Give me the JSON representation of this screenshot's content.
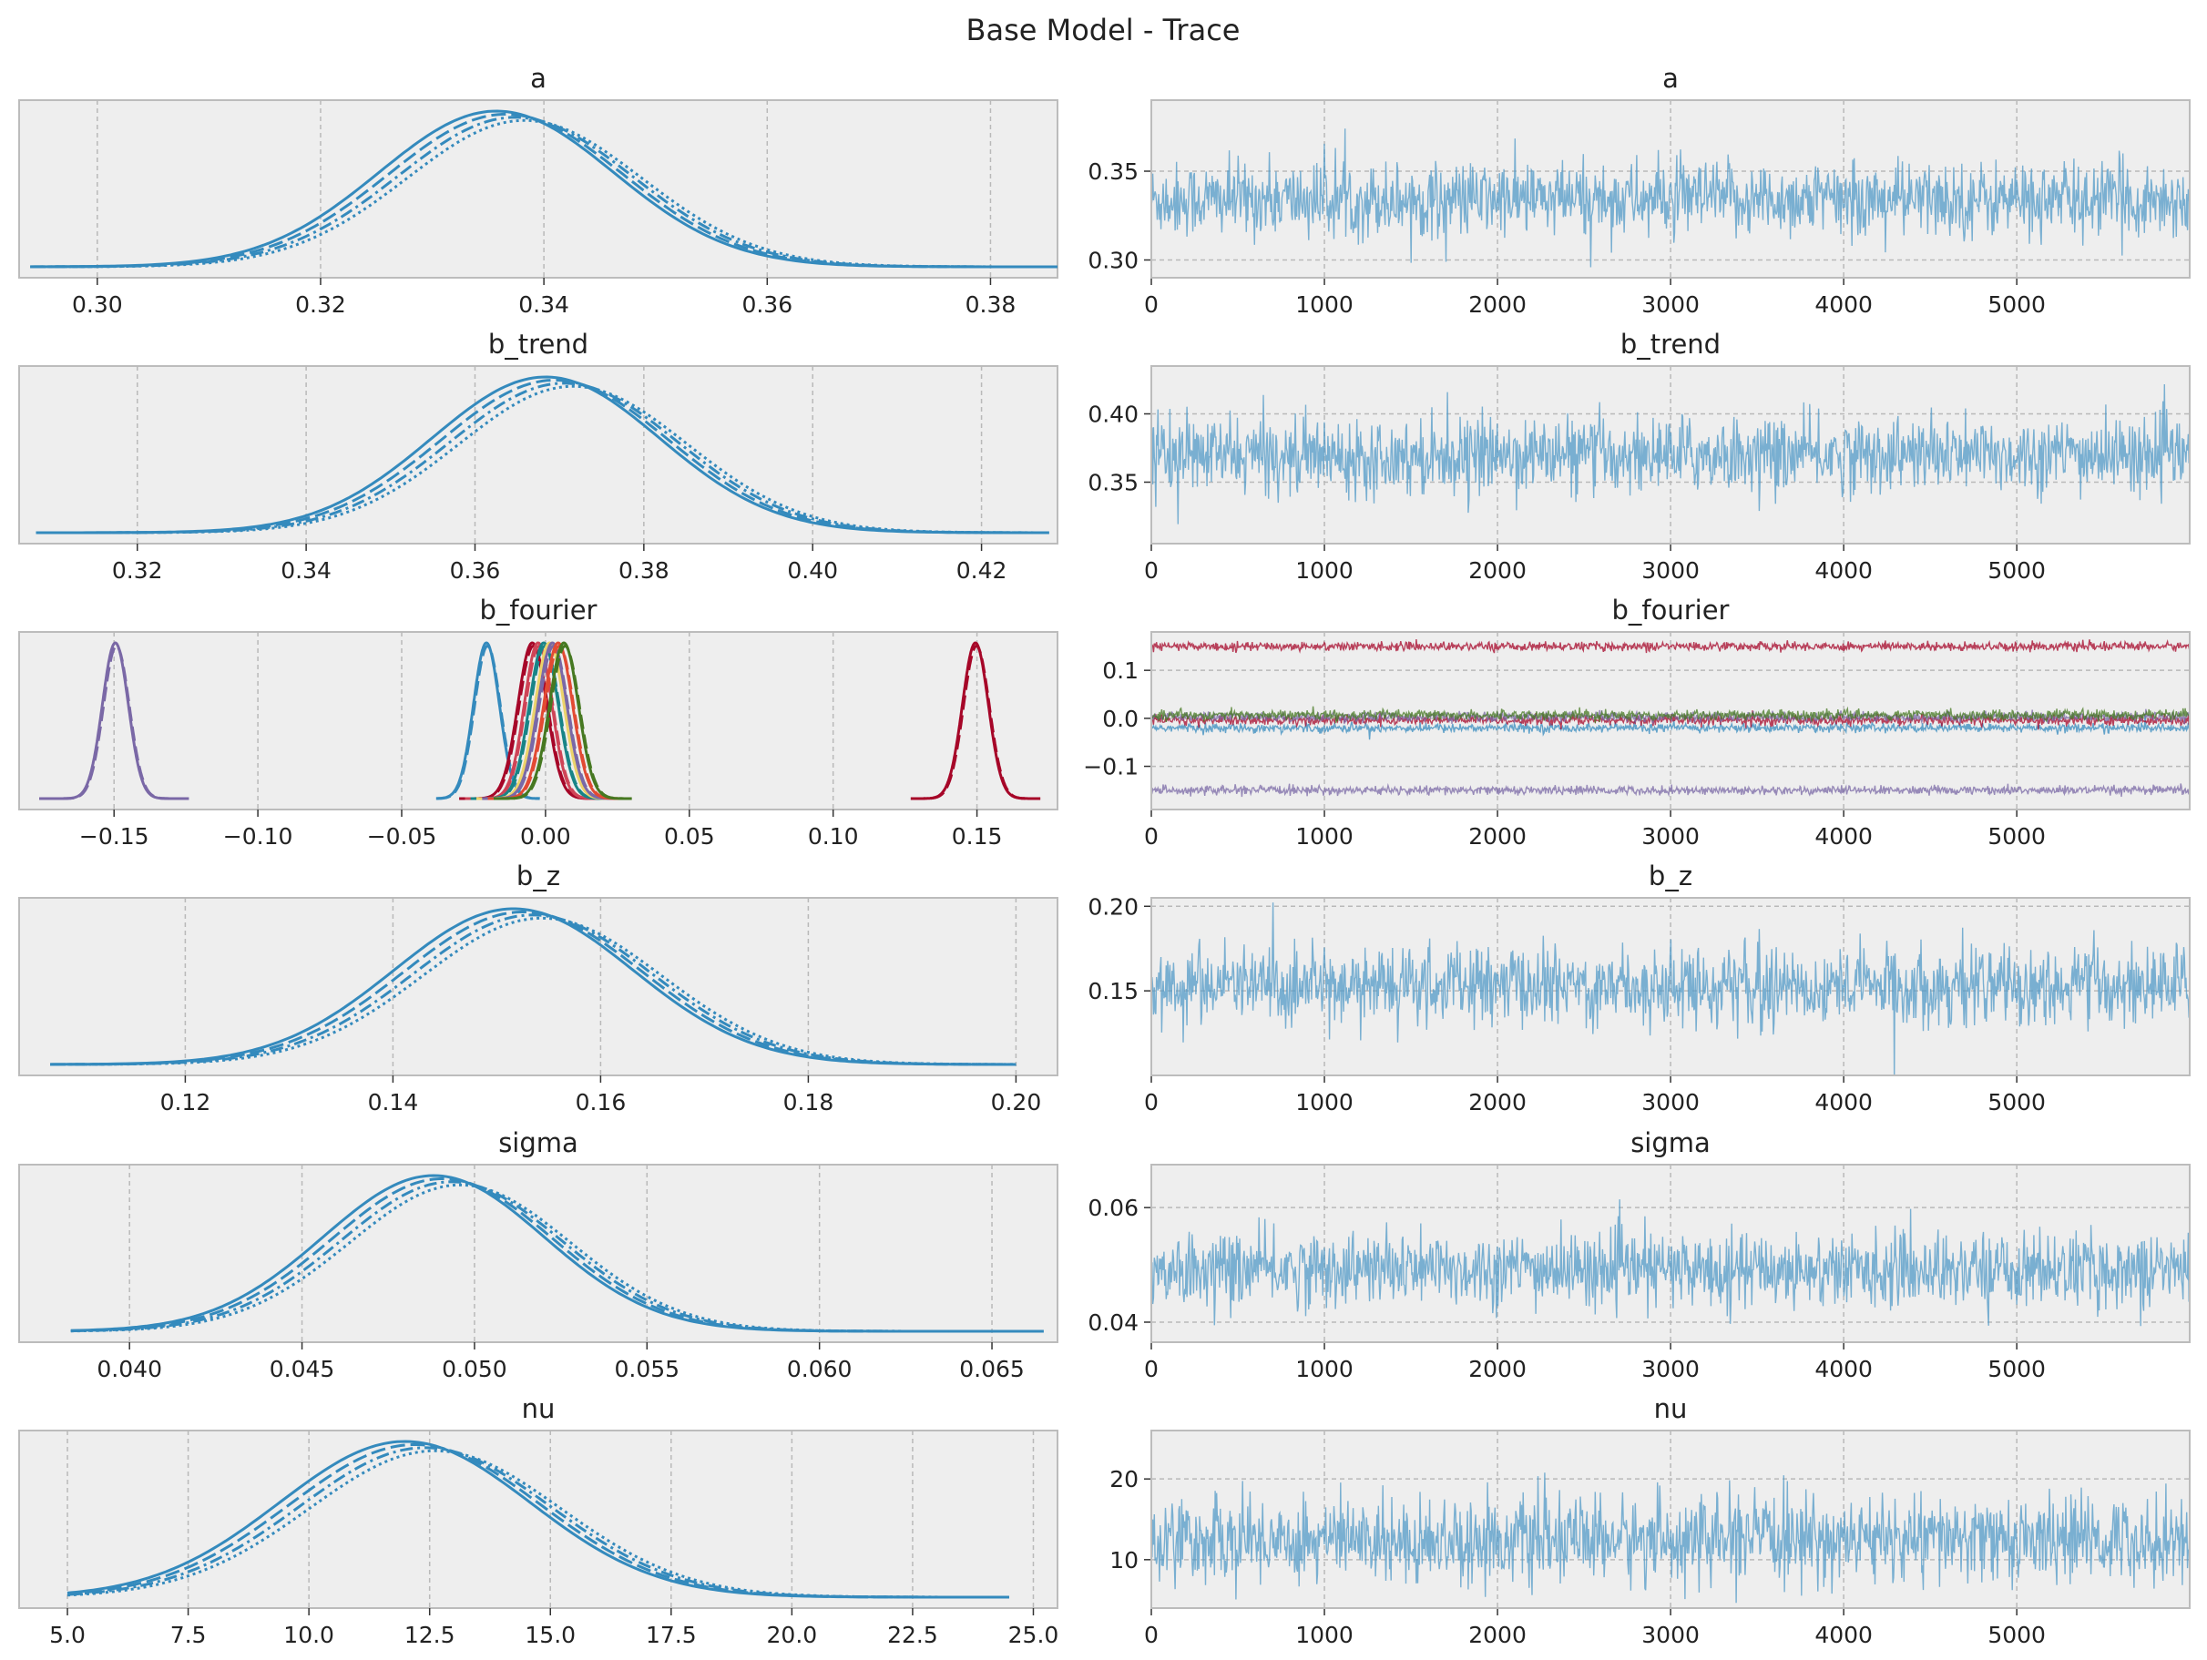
{
  "title": "Base Model - Trace",
  "colors": {
    "panel_bg": "#eeeeee",
    "grid": "#b9b9b9",
    "blue": "#348abd",
    "trace_blue": "#5299c7",
    "red": "#a60628",
    "purple": "#7a68a6",
    "green": "#467821",
    "yellow": "#ecd36a",
    "pink": "#cf4457",
    "teal": "#188487",
    "orange": "#e24a33"
  },
  "chart_data": [
    {
      "type": "line",
      "kind": "kde",
      "title": "a",
      "xlim": [
        0.293,
        0.386
      ],
      "xticks": [
        "0.30",
        "0.32",
        "0.34",
        "0.36",
        "0.38"
      ],
      "tick_values": [
        0.3,
        0.32,
        0.34,
        0.36,
        0.38
      ],
      "series": [
        {
          "mean": 0.337,
          "sd": 0.0105,
          "range": [
            0.294,
            0.386
          ],
          "color": "blue"
        }
      ]
    },
    {
      "type": "line",
      "kind": "trace",
      "title": "a",
      "xlim": [
        0,
        5999
      ],
      "ylim": [
        0.29,
        0.39
      ],
      "xticks": [
        "0",
        "1000",
        "2000",
        "3000",
        "4000",
        "5000"
      ],
      "yticks": [
        "0.30",
        "0.35"
      ],
      "ytick_values": [
        0.3,
        0.35
      ],
      "series": [
        {
          "mean": 0.334,
          "sd": 0.0105,
          "color": "trace_blue"
        }
      ]
    },
    {
      "type": "line",
      "kind": "kde",
      "title": "b_trend",
      "xlim": [
        0.306,
        0.429
      ],
      "xticks": [
        "0.32",
        "0.34",
        "0.36",
        "0.38",
        "0.40",
        "0.42"
      ],
      "tick_values": [
        0.32,
        0.34,
        0.36,
        0.38,
        0.4,
        0.42
      ],
      "series": [
        {
          "mean": 0.37,
          "sd": 0.0135,
          "range": [
            0.308,
            0.428
          ],
          "color": "blue"
        }
      ]
    },
    {
      "type": "line",
      "kind": "trace",
      "title": "b_trend",
      "xlim": [
        0,
        5999
      ],
      "ylim": [
        0.305,
        0.435
      ],
      "xticks": [
        "0",
        "1000",
        "2000",
        "3000",
        "4000",
        "5000"
      ],
      "yticks": [
        "0.35",
        "0.40"
      ],
      "ytick_values": [
        0.35,
        0.4
      ],
      "series": [
        {
          "mean": 0.37,
          "sd": 0.0135,
          "color": "trace_blue"
        }
      ]
    },
    {
      "type": "line",
      "kind": "kde",
      "title": "b_fourier",
      "xlim": [
        -0.183,
        0.178
      ],
      "xticks": [
        "−0.15",
        "−0.10",
        "−0.05",
        "0.00",
        "0.05",
        "0.10",
        "0.15"
      ],
      "tick_values": [
        -0.15,
        -0.1,
        -0.05,
        0.0,
        0.05,
        0.1,
        0.15
      ],
      "series": [
        {
          "mean": -0.149,
          "sd": 0.0045,
          "range": [
            -0.176,
            -0.124
          ],
          "color": "purple"
        },
        {
          "mean": 0.15,
          "sd": 0.0045,
          "range": [
            0.127,
            0.172
          ],
          "color": "red"
        },
        {
          "mean": -0.02,
          "sd": 0.0045,
          "range": [
            -0.038,
            -0.002
          ],
          "color": "blue"
        },
        {
          "mean": -0.004,
          "sd": 0.005,
          "range": [
            -0.03,
            0.02
          ],
          "color": "red"
        },
        {
          "mean": -0.002,
          "sd": 0.0048,
          "range": [
            -0.028,
            0.022
          ],
          "color": "pink"
        },
        {
          "mean": 0.0,
          "sd": 0.005,
          "range": [
            -0.026,
            0.024
          ],
          "color": "teal"
        },
        {
          "mean": 0.002,
          "sd": 0.005,
          "range": [
            -0.024,
            0.026
          ],
          "color": "yellow"
        },
        {
          "mean": 0.003,
          "sd": 0.005,
          "range": [
            -0.022,
            0.026
          ],
          "color": "purple"
        },
        {
          "mean": 0.005,
          "sd": 0.005,
          "range": [
            -0.02,
            0.028
          ],
          "color": "orange"
        },
        {
          "mean": 0.007,
          "sd": 0.005,
          "range": [
            -0.018,
            0.03
          ],
          "color": "green"
        }
      ]
    },
    {
      "type": "line",
      "kind": "trace",
      "title": "b_fourier",
      "xlim": [
        0,
        5999
      ],
      "ylim": [
        -0.19,
        0.18
      ],
      "xticks": [
        "0",
        "1000",
        "2000",
        "3000",
        "4000",
        "5000"
      ],
      "yticks": [
        "−0.1",
        "0.0",
        "0.1"
      ],
      "ytick_values": [
        -0.1,
        0.0,
        0.1
      ],
      "series": [
        {
          "mean": 0.15,
          "sd": 0.0045,
          "color": "red"
        },
        {
          "mean": -0.15,
          "sd": 0.0045,
          "color": "purple"
        },
        {
          "mean": -0.02,
          "sd": 0.0045,
          "color": "blue"
        },
        {
          "mean": -0.004,
          "sd": 0.005,
          "color": "red"
        },
        {
          "mean": 0.003,
          "sd": 0.005,
          "color": "purple"
        },
        {
          "mean": 0.007,
          "sd": 0.005,
          "color": "green"
        }
      ]
    },
    {
      "type": "line",
      "kind": "kde",
      "title": "b_z",
      "xlim": [
        0.104,
        0.204
      ],
      "xticks": [
        "0.12",
        "0.14",
        "0.16",
        "0.18",
        "0.20"
      ],
      "tick_values": [
        0.12,
        0.14,
        0.16,
        0.18,
        0.2
      ],
      "series": [
        {
          "mean": 0.153,
          "sd": 0.0115,
          "range": [
            0.107,
            0.2
          ],
          "color": "blue"
        }
      ]
    },
    {
      "type": "line",
      "kind": "trace",
      "title": "b_z",
      "xlim": [
        0,
        5999
      ],
      "ylim": [
        0.1,
        0.205
      ],
      "xticks": [
        "0",
        "1000",
        "2000",
        "3000",
        "4000",
        "5000"
      ],
      "yticks": [
        "0.15",
        "0.20"
      ],
      "ytick_values": [
        0.15,
        0.2
      ],
      "series": [
        {
          "mean": 0.153,
          "sd": 0.0115,
          "color": "trace_blue"
        }
      ]
    },
    {
      "type": "line",
      "kind": "kde",
      "title": "sigma",
      "xlim": [
        0.0368,
        0.0669
      ],
      "xticks": [
        "0.040",
        "0.045",
        "0.050",
        "0.055",
        "0.060",
        "0.065"
      ],
      "tick_values": [
        0.04,
        0.045,
        0.05,
        0.055,
        0.06,
        0.065
      ],
      "series": [
        {
          "mean": 0.0492,
          "sd": 0.0032,
          "range": [
            0.0383,
            0.0665
          ],
          "color": "blue"
        }
      ]
    },
    {
      "type": "line",
      "kind": "trace",
      "title": "sigma",
      "xlim": [
        0,
        5999
      ],
      "ylim": [
        0.0365,
        0.0675
      ],
      "xticks": [
        "0",
        "1000",
        "2000",
        "3000",
        "4000",
        "5000"
      ],
      "yticks": [
        "0.04",
        "0.06"
      ],
      "ytick_values": [
        0.04,
        0.06
      ],
      "series": [
        {
          "mean": 0.0492,
          "sd": 0.0032,
          "color": "trace_blue"
        }
      ]
    },
    {
      "type": "line",
      "kind": "kde",
      "title": "nu",
      "xlim": [
        4.0,
        25.5
      ],
      "xticks": [
        "5.0",
        "7.5",
        "10.0",
        "12.5",
        "15.0",
        "17.5",
        "20.0",
        "22.5",
        "25.0"
      ],
      "tick_values": [
        5.0,
        7.5,
        10.0,
        12.5,
        15.0,
        17.5,
        20.0,
        22.5,
        25.0
      ],
      "series": [
        {
          "mean": 12.3,
          "sd": 2.6,
          "range": [
            5.0,
            24.5
          ],
          "color": "blue"
        }
      ]
    },
    {
      "type": "line",
      "kind": "trace",
      "title": "nu",
      "xlim": [
        0,
        5999
      ],
      "ylim": [
        4.0,
        26.0
      ],
      "xticks": [
        "0",
        "1000",
        "2000",
        "3000",
        "4000",
        "5000"
      ],
      "yticks": [
        "10",
        "20"
      ],
      "ytick_values": [
        10,
        20
      ],
      "series": [
        {
          "mean": 12.5,
          "sd": 2.6,
          "color": "trace_blue"
        }
      ]
    }
  ]
}
